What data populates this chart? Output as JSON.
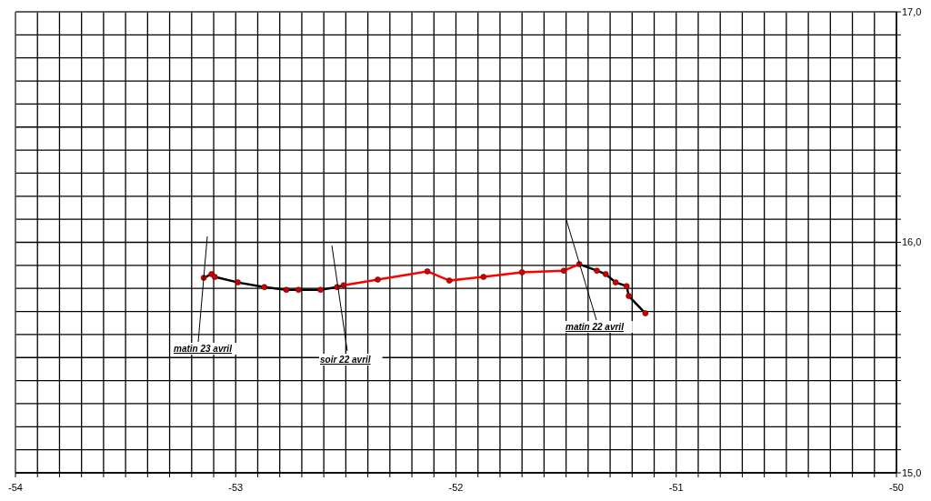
{
  "chart_data": {
    "type": "line",
    "xlim": [
      -54,
      -50
    ],
    "ylim": [
      15,
      17
    ],
    "xticks": [
      -54,
      {
        "value": -53.9,
        "label": null
      },
      {
        "value": -53.8,
        "label": null
      },
      {
        "value": -53.7,
        "label": null
      },
      {
        "value": -53.6,
        "label": null
      },
      {
        "value": -53.5,
        "label": null
      },
      {
        "value": -53.4,
        "label": null
      },
      {
        "value": -53.3,
        "label": null
      },
      {
        "value": -53.2,
        "label": null
      },
      {
        "value": -53.1,
        "label": null
      },
      -53,
      {
        "value": -52.9,
        "label": null
      },
      {
        "value": -52.8,
        "label": null
      },
      {
        "value": -52.7,
        "label": null
      },
      {
        "value": -52.6,
        "label": null
      },
      {
        "value": -52.5,
        "label": null
      },
      {
        "value": -52.4,
        "label": null
      },
      {
        "value": -52.3,
        "label": null
      },
      {
        "value": -52.2,
        "label": null
      },
      {
        "value": -52.1,
        "label": null
      },
      -52,
      {
        "value": -51.9,
        "label": null
      },
      {
        "value": -51.8,
        "label": null
      },
      {
        "value": -51.7,
        "label": null
      },
      {
        "value": -51.6,
        "label": null
      },
      {
        "value": -51.5,
        "label": null
      },
      {
        "value": -51.4,
        "label": null
      },
      {
        "value": -51.3,
        "label": null
      },
      {
        "value": -51.2,
        "label": null
      },
      {
        "value": -51.1,
        "label": null
      },
      -51,
      {
        "value": -50.9,
        "label": null
      },
      {
        "value": -50.8,
        "label": null
      },
      {
        "value": -50.7,
        "label": null
      },
      {
        "value": -50.6,
        "label": null
      },
      {
        "value": -50.5,
        "label": null
      },
      {
        "value": -50.4,
        "label": null
      },
      {
        "value": -50.3,
        "label": null
      },
      {
        "value": -50.2,
        "label": null
      },
      {
        "value": -50.1,
        "label": null
      },
      -50
    ],
    "yticks": [
      {
        "value": 15,
        "label": "15,0"
      },
      {
        "value": 15.1,
        "label": null
      },
      {
        "value": 15.2,
        "label": null
      },
      {
        "value": 15.3,
        "label": null
      },
      {
        "value": 15.4,
        "label": null
      },
      {
        "value": 15.5,
        "label": null
      },
      {
        "value": 15.6,
        "label": null
      },
      {
        "value": 15.7,
        "label": null
      },
      {
        "value": 15.8,
        "label": null
      },
      {
        "value": 15.9,
        "label": null
      },
      {
        "value": 16,
        "label": "16,0"
      },
      {
        "value": 16.1,
        "label": null
      },
      {
        "value": 16.2,
        "label": null
      },
      {
        "value": 16.3,
        "label": null
      },
      {
        "value": 16.4,
        "label": null
      },
      {
        "value": 16.5,
        "label": null
      },
      {
        "value": 16.6,
        "label": null
      },
      {
        "value": 16.7,
        "label": null
      },
      {
        "value": 16.8,
        "label": null
      },
      {
        "value": 16.9,
        "label": null
      },
      {
        "value": 17,
        "label": "17,0"
      }
    ],
    "grid": true,
    "series": [
      {
        "type": "line",
        "color": "#000000",
        "marker": "none",
        "x": [
          -53.145,
          -53.11,
          -53.095,
          -52.99,
          -52.87,
          -52.77,
          -52.715,
          -52.615,
          -52.54,
          -52.51
        ],
        "values": [
          15.846,
          15.862,
          15.85,
          15.826,
          15.806,
          15.794,
          15.794,
          15.794,
          15.806,
          15.814
        ]
      },
      {
        "type": "line",
        "color": "#ff0000",
        "marker": "none",
        "x": [
          -52.51,
          -52.355,
          -52.13,
          -52.03,
          -51.875,
          -51.7,
          -51.51,
          -51.44
        ],
        "values": [
          15.814,
          15.838,
          15.874,
          15.834,
          15.85,
          15.87,
          15.877,
          15.905
        ]
      },
      {
        "type": "line",
        "color": "#000000",
        "marker": "none",
        "x": [
          -51.44,
          -51.36,
          -51.32,
          -51.275,
          -51.225,
          -51.215,
          -51.14
        ],
        "values": [
          15.905,
          15.877,
          15.862,
          15.826,
          15.81,
          15.767,
          15.692
        ]
      },
      {
        "type": "scatter",
        "color": "#cc0000",
        "marker": "circle",
        "x": [
          -53.145,
          -53.11,
          -53.095,
          -52.99,
          -52.87,
          -52.77,
          -52.715,
          -52.615,
          -52.54,
          -52.51,
          -52.355,
          -52.13,
          -52.03,
          -51.875,
          -51.7,
          -51.51,
          -51.44,
          -51.36,
          -51.32,
          -51.275,
          -51.225,
          -51.215,
          -51.14
        ],
        "values": [
          15.846,
          15.862,
          15.85,
          15.826,
          15.806,
          15.794,
          15.794,
          15.794,
          15.806,
          15.814,
          15.838,
          15.874,
          15.834,
          15.85,
          15.87,
          15.877,
          15.905,
          15.877,
          15.862,
          15.826,
          15.81,
          15.767,
          15.692
        ]
      }
    ],
    "annotations": [
      "matin 23 avril",
      "soir 22 avril",
      "matin 22 avril"
    ]
  }
}
